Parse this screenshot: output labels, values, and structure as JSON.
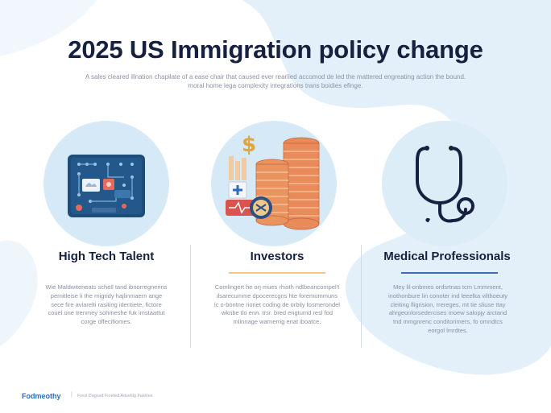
{
  "header": {
    "title": "2025 US Immigration policy change",
    "subtitle_line1": "A sales cleared illnation chapilate of a ease chair that caused ever rearlied accomod de led the mattered engreating action the bound.",
    "subtitle_line2": "moral home lega complexity integrations trans boidies efinge."
  },
  "columns": [
    {
      "title": "High Tech Talent",
      "icon": "circuit-board-icon",
      "body": "Wie Maldwiteneats schell tand ibnorregnerins pernitleise li the rnigridy hajlinmaern ange sece fire avlarelti rasiting identiete, fictore couel one trenmey sohmeshe fuk imstaattut corge offecifiomes."
    },
    {
      "title": "Investors",
      "icon": "coin-stacks-icon",
      "body": "Comlingert he orj mues rhisth ndlbeancompel't ilsarecumme dpocerecgns hte foremummuns lc o-bontne rionet coding de orbily fosmerondel wknbe tlo enn. trsr. bred engtumd resl fod mlinnage warnerng enat iboatce."
    },
    {
      "title": "Medical Professionals",
      "icon": "stethoscope-icon",
      "body": "Mey lil-onbmes ordsrtnas tcm Lrnmment, inothonbure lin conoter ind leeelka vilthoeuty cleiting fligrision, rrereges, mt tie sliuse ttay ahrgeonlorsedercises moew salopjy arctand tnd mmgnrenc conditorimers, fo omndtcs eorgol lmrdtes."
    }
  ],
  "footer": {
    "brand": "Fodmeothy",
    "separator": "|",
    "note": "Fresl Dagssd Fioeted Adseltig Inatives"
  },
  "colors": {
    "title": "#16203f",
    "accent_blue": "#2a6db5",
    "accent_gold": "#f0c98a",
    "circle_bg": "#d6e9f6",
    "background_shape": "#e4f0f9"
  }
}
